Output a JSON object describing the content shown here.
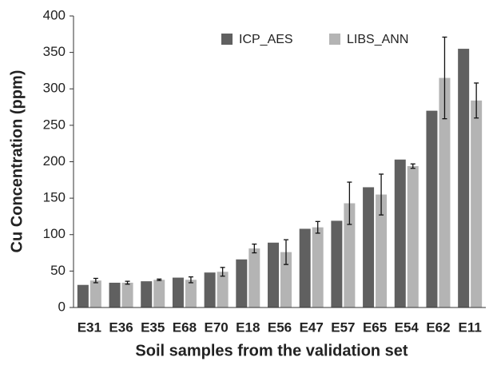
{
  "chart_data": {
    "type": "bar",
    "xlabel": "Soil samples from the validation set",
    "ylabel": "Cu Concentration (ppm)",
    "categories": [
      "E31",
      "E36",
      "E35",
      "E68",
      "E70",
      "E18",
      "E56",
      "E47",
      "E57",
      "E65",
      "E54",
      "E62",
      "E11"
    ],
    "series": [
      {
        "name": "ICP_AES",
        "color": "#606060",
        "values": [
          31,
          34,
          36,
          41,
          48,
          66,
          89,
          108,
          119,
          165,
          203,
          270,
          355
        ]
      },
      {
        "name": "LIBS_ANN",
        "color": "#b4b4b4",
        "values": [
          37,
          34,
          38,
          38,
          49,
          81,
          76,
          110,
          143,
          155,
          194,
          315,
          284
        ],
        "errors": [
          3,
          2,
          1,
          4,
          6,
          6,
          17,
          8,
          29,
          28,
          3,
          56,
          24
        ]
      }
    ],
    "ylim": [
      0,
      400
    ],
    "yticks": [
      0,
      50,
      100,
      150,
      200,
      250,
      300,
      350,
      400
    ],
    "grid": false,
    "legend": "top"
  }
}
